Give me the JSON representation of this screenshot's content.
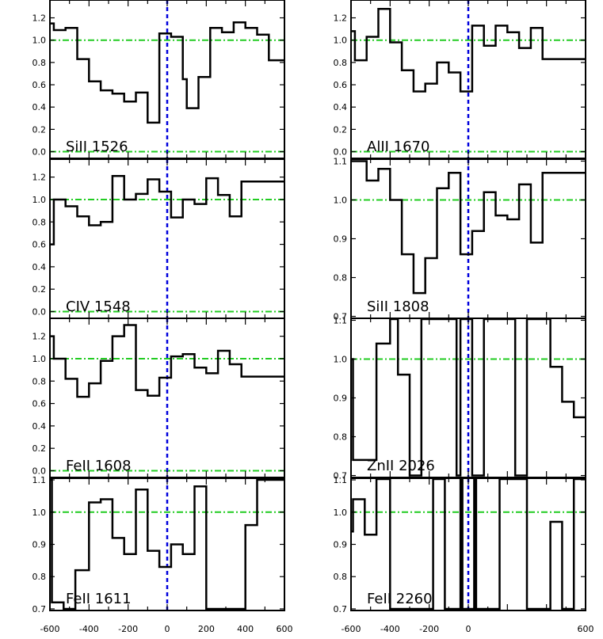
{
  "colors": {
    "spectrum": "#000000",
    "continuum": "#22cc22",
    "zero_velocity": "#0000dd",
    "frame": "#000000"
  },
  "chart_data": [
    {
      "type": "line",
      "label": "SiII 1526",
      "xlim": [
        -600,
        600
      ],
      "ylim": [
        -0.06,
        1.36
      ],
      "yticks": [
        "0.0",
        "0.2",
        "0.4",
        "0.6",
        "0.8",
        "1.0",
        "1.2"
      ],
      "yticks_values": [
        0.0,
        0.2,
        0.4,
        0.6,
        0.8,
        1.0,
        1.2
      ],
      "xticks": [],
      "reference_lines": [
        0.0,
        1.0
      ],
      "edges": [
        -600,
        -580,
        -520,
        -460,
        -400,
        -340,
        -280,
        -220,
        -160,
        -100,
        -40,
        20,
        80,
        100,
        160,
        220,
        280,
        340,
        400,
        460,
        520,
        580,
        600
      ],
      "values": [
        1.15,
        1.09,
        1.11,
        0.83,
        0.63,
        0.55,
        0.52,
        0.45,
        0.53,
        0.26,
        1.06,
        1.03,
        0.65,
        0.39,
        0.67,
        1.11,
        1.07,
        1.16,
        1.11,
        1.05,
        0.82,
        0.82
      ]
    },
    {
      "type": "line",
      "label": "AlII 1670",
      "xlim": [
        -600,
        600
      ],
      "ylim": [
        -0.06,
        1.36
      ],
      "yticks": [
        "0.0",
        "0.2",
        "0.4",
        "0.6",
        "0.8",
        "1.0",
        "1.2"
      ],
      "yticks_values": [
        0.0,
        0.2,
        0.4,
        0.6,
        0.8,
        1.0,
        1.2
      ],
      "xticks": [],
      "reference_lines": [
        0.0,
        1.0
      ],
      "edges": [
        -600,
        -580,
        -520,
        -460,
        -400,
        -340,
        -280,
        -220,
        -160,
        -100,
        -40,
        20,
        80,
        140,
        200,
        260,
        320,
        380,
        440,
        500,
        580,
        600
      ],
      "values": [
        1.08,
        0.82,
        1.03,
        1.28,
        0.98,
        0.73,
        0.54,
        0.61,
        0.8,
        0.71,
        0.54,
        1.13,
        0.95,
        1.13,
        1.07,
        0.93,
        1.11,
        0.83,
        0.83,
        0.83,
        0.83
      ]
    },
    {
      "type": "line",
      "label": "CIV 1548",
      "xlim": [
        -600,
        600
      ],
      "ylim": [
        -0.06,
        1.36
      ],
      "yticks": [
        "0.0",
        "0.2",
        "0.4",
        "0.6",
        "0.8",
        "1.0",
        "1.2"
      ],
      "yticks_values": [
        0.0,
        0.2,
        0.4,
        0.6,
        0.8,
        1.0,
        1.2
      ],
      "xticks": [],
      "reference_lines": [
        0.0,
        1.0
      ],
      "edges": [
        -600,
        -580,
        -520,
        -460,
        -400,
        -340,
        -280,
        -220,
        -160,
        -100,
        -40,
        20,
        80,
        140,
        200,
        260,
        320,
        380,
        440,
        500,
        580,
        600
      ],
      "values": [
        0.6,
        1.0,
        0.94,
        0.85,
        0.77,
        0.8,
        1.21,
        1.0,
        1.05,
        1.18,
        1.07,
        0.84,
        1.0,
        0.96,
        1.19,
        1.04,
        0.85,
        1.16,
        1.16,
        1.16,
        1.16
      ]
    },
    {
      "type": "line",
      "label": "SiII 1808",
      "xlim": [
        -600,
        600
      ],
      "ylim": [
        0.695,
        1.105
      ],
      "yticks": [
        "0.7",
        "0.8",
        "0.9",
        "1.0",
        "1.1"
      ],
      "yticks_values": [
        0.7,
        0.8,
        0.9,
        1.0,
        1.1
      ],
      "xticks": [],
      "reference_lines": [
        1.0
      ],
      "edges": [
        -600,
        -580,
        -520,
        -460,
        -400,
        -340,
        -280,
        -220,
        -160,
        -100,
        -40,
        20,
        80,
        140,
        200,
        260,
        320,
        380,
        440,
        500,
        580,
        600
      ],
      "values": [
        1.1,
        1.1,
        1.05,
        1.08,
        1.0,
        0.86,
        0.76,
        0.85,
        1.03,
        1.07,
        0.86,
        0.92,
        1.02,
        0.96,
        0.95,
        1.04,
        0.89,
        1.07,
        1.07,
        1.07,
        1.07
      ]
    },
    {
      "type": "line",
      "label": "FeII 1608",
      "xlim": [
        -600,
        600
      ],
      "ylim": [
        -0.06,
        1.36
      ],
      "yticks": [
        "0.0",
        "0.2",
        "0.4",
        "0.6",
        "0.8",
        "1.0",
        "1.2"
      ],
      "yticks_values": [
        0.0,
        0.2,
        0.4,
        0.6,
        0.8,
        1.0,
        1.2
      ],
      "xticks": [],
      "reference_lines": [
        0.0,
        1.0
      ],
      "edges": [
        -600,
        -580,
        -520,
        -460,
        -400,
        -340,
        -280,
        -220,
        -160,
        -100,
        -40,
        20,
        80,
        140,
        200,
        260,
        320,
        380,
        440,
        500,
        580,
        600
      ],
      "values": [
        1.2,
        1.0,
        0.82,
        0.66,
        0.78,
        0.98,
        1.2,
        1.3,
        0.72,
        0.67,
        0.83,
        1.02,
        1.04,
        0.92,
        0.87,
        1.07,
        0.95,
        0.84,
        0.84,
        0.84,
        0.84
      ]
    },
    {
      "type": "line",
      "label": "ZnII 2026",
      "xlim": [
        -600,
        600
      ],
      "ylim": [
        0.695,
        1.105
      ],
      "yticks": [
        "0.7",
        "0.8",
        "0.9",
        "1.0",
        "1.1"
      ],
      "yticks_values": [
        0.7,
        0.8,
        0.9,
        1.0,
        1.1
      ],
      "xticks": [],
      "reference_lines": [
        1.0
      ],
      "edges": [
        -600,
        -590,
        -530,
        -470,
        -400,
        -360,
        -300,
        -240,
        -180,
        -120,
        -60,
        -40,
        20,
        80,
        140,
        200,
        240,
        300,
        360,
        420,
        480,
        540,
        590,
        600
      ],
      "values": [
        1.0,
        0.74,
        0.74,
        1.04,
        1.12,
        0.96,
        0.7,
        1.12,
        1.12,
        1.12,
        0.7,
        1.12,
        0.7,
        1.12,
        1.12,
        1.12,
        0.7,
        1.12,
        1.12,
        0.98,
        0.89,
        0.85,
        0.85
      ]
    },
    {
      "type": "line",
      "label": "FeII 1611",
      "xlim": [
        -600,
        600
      ],
      "ylim": [
        0.695,
        1.105
      ],
      "yticks": [
        "0.7",
        "0.8",
        "0.9",
        "1.0",
        "1.1"
      ],
      "yticks_values": [
        0.7,
        0.8,
        0.9,
        1.0,
        1.1
      ],
      "xticks": [
        "-600",
        "-400",
        "-200",
        "0",
        "200",
        "400",
        "600"
      ],
      "xticks_values": [
        -600,
        -400,
        -200,
        0,
        200,
        400,
        600
      ],
      "reference_lines": [
        1.0
      ],
      "edges": [
        -600,
        -590,
        -530,
        -470,
        -400,
        -340,
        -280,
        -220,
        -160,
        -100,
        -40,
        20,
        80,
        140,
        200,
        260,
        400,
        460,
        520,
        600
      ],
      "values": [
        1.1,
        0.72,
        0.7,
        0.82,
        1.03,
        1.04,
        0.92,
        0.87,
        1.07,
        0.88,
        0.83,
        0.9,
        0.87,
        1.08,
        0.7,
        0.7,
        0.96,
        1.1,
        1.1
      ]
    },
    {
      "type": "line",
      "label": "FeII 2260",
      "xlim": [
        -600,
        600
      ],
      "ylim": [
        0.695,
        1.105
      ],
      "yticks": [
        "0.7",
        "0.8",
        "0.9",
        "1.0",
        "1.1"
      ],
      "yticks_values": [
        0.7,
        0.8,
        0.9,
        1.0,
        1.1
      ],
      "xticks": [
        "-600",
        "-400",
        "-200",
        "0",
        "600"
      ],
      "xticks_values": [
        -600,
        -400,
        -200,
        0,
        600
      ],
      "reference_lines": [
        1.0
      ],
      "edges": [
        -600,
        -590,
        -530,
        -470,
        -400,
        -340,
        -180,
        -120,
        -40,
        -30,
        30,
        40,
        100,
        160,
        300,
        360,
        420,
        480,
        540,
        590,
        600
      ],
      "values": [
        0.94,
        1.04,
        0.93,
        1.12,
        0.7,
        0.7,
        1.12,
        0.7,
        1.12,
        0.7,
        1.12,
        0.7,
        0.7,
        1.12,
        0.7,
        0.7,
        0.97,
        0.7,
        1.12,
        1.12
      ]
    }
  ]
}
